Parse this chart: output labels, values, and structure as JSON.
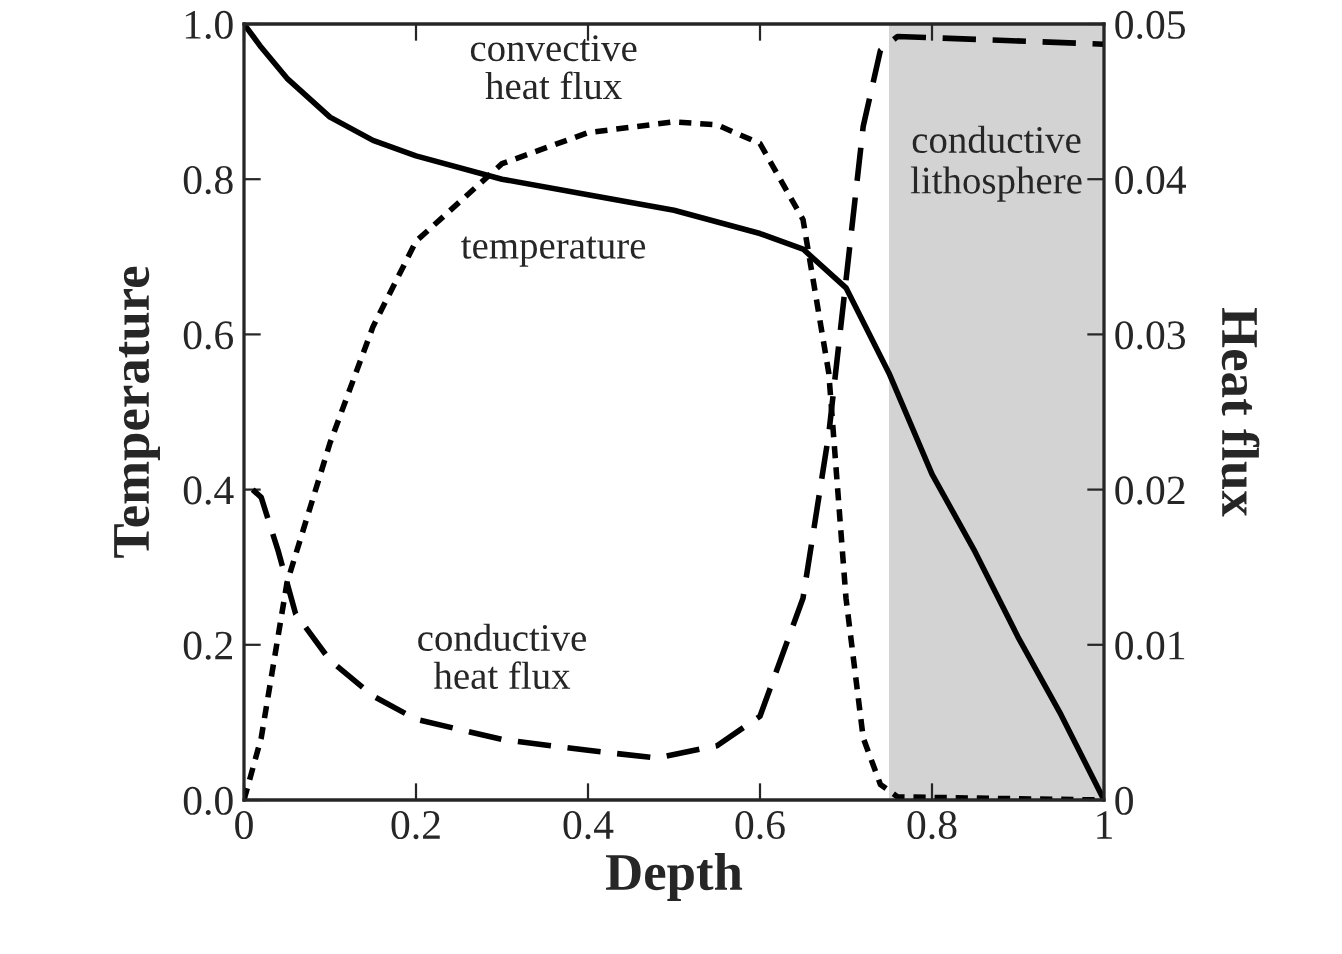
{
  "chart_data": {
    "type": "line",
    "xlabel": "Depth",
    "ylabel": "Temperature",
    "y2label": "Heat flux",
    "xlim": [
      0,
      1
    ],
    "xticks": [
      {
        "value": 0,
        "label": "0"
      },
      0.2,
      0.4,
      0.6,
      0.8,
      {
        "value": 1,
        "label": "1"
      }
    ],
    "ylim": [
      0,
      1
    ],
    "yticks": [
      {
        "value": 0,
        "label": "0.0"
      },
      0.2,
      0.4,
      0.6,
      0.8,
      {
        "value": 1,
        "label": "1.0"
      }
    ],
    "y2lim": [
      0,
      0.05
    ],
    "y2ticks": [
      {
        "value": 0,
        "label": "0"
      },
      0.01,
      0.02,
      0.03,
      0.04,
      0.05
    ],
    "grid": false,
    "legend": false,
    "marker": "none",
    "series": [
      {
        "color": "#000000",
        "line_style": "solid",
        "x": [
          0,
          0.02,
          0.05,
          0.1,
          0.15,
          0.2,
          0.3,
          0.4,
          0.5,
          0.6,
          0.65,
          0.7,
          0.75,
          0.8,
          0.85,
          0.9,
          0.95,
          1.0
        ],
        "values": [
          1.0,
          0.97,
          0.93,
          0.88,
          0.85,
          0.83,
          0.8,
          0.78,
          0.76,
          0.73,
          0.71,
          0.66,
          0.55,
          0.42,
          0.32,
          0.21,
          0.11,
          0.0
        ]
      },
      {
        "color": "#000000",
        "line_style": "dotted",
        "axis": "y2",
        "x": [
          0,
          0.02,
          0.05,
          0.1,
          0.15,
          0.2,
          0.3,
          0.4,
          0.5,
          0.55,
          0.6,
          0.65,
          0.68,
          0.7,
          0.72,
          0.74,
          0.76,
          1.0
        ],
        "values": [
          0,
          0.004,
          0.014,
          0.023,
          0.0305,
          0.036,
          0.041,
          0.043,
          0.0437,
          0.0435,
          0.0423,
          0.0374,
          0.0275,
          0.013,
          0.004,
          0.001,
          0.0002,
          0
        ]
      },
      {
        "color": "#000000",
        "line_style": "dashed",
        "axis": "y2",
        "x": [
          0.01,
          0.02,
          0.04,
          0.06,
          0.1,
          0.15,
          0.2,
          0.3,
          0.4,
          0.48,
          0.55,
          0.6,
          0.65,
          0.68,
          0.7,
          0.72,
          0.74,
          0.76,
          1.0
        ],
        "values": [
          0.02,
          0.0195,
          0.016,
          0.012,
          0.009,
          0.0067,
          0.0052,
          0.0039,
          0.0032,
          0.0027,
          0.0035,
          0.0054,
          0.013,
          0.0236,
          0.0335,
          0.0434,
          0.0483,
          0.0492,
          0.0487
        ]
      }
    ],
    "bands": [
      {
        "axis": "x",
        "from": 0.75,
        "to": 1,
        "label": "conductive\nlithosphere",
        "color": "#d3d3d3"
      }
    ],
    "annotations": [
      "convective\nheat flux",
      "temperature",
      "conductive\nheat flux"
    ]
  }
}
